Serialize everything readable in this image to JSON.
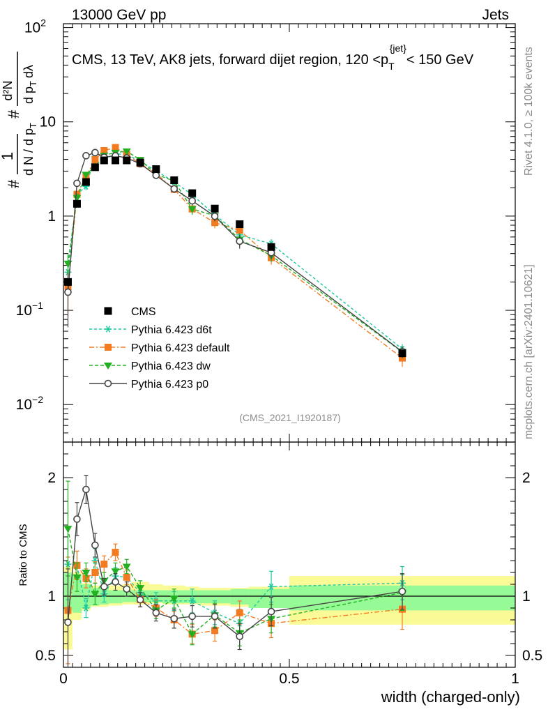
{
  "header": {
    "energy_label": "13000 GeV pp",
    "category_label": "Jets"
  },
  "side_text": {
    "rivet": "Rivet 4.1.0, ≥ 100k events",
    "site": "mcplots.cern.ch [arXiv:2401.10621]"
  },
  "chart_data": {
    "type": "line",
    "title": "CMS, 13 TeV, AK8 jets, forward dijet region, 120 <p_T^{jet}< 150 GeV",
    "title_parts": {
      "main": "CMS, 13 TeV, AK8 jets, forward dijet region, 120 <p",
      "sub": "T",
      "sup": "{jet}",
      "tail": "< 150 GeV"
    },
    "analysis_id": "(CMS_2021_I1920187)",
    "xlabel": "width (charged-only)",
    "ylabel_top": "1/(dN/dp_T) d^2N/(dp_T dλ)",
    "ylabel_top_parts": {
      "hash": "#",
      "one": "1",
      "denom": "d N / d p",
      "denom_sub": "T",
      "num_big": "d²N",
      "num_den": "d p",
      "num_den_sub": "T",
      "num_den_tail": "dλ"
    },
    "ylabel_ratio": "Ratio to CMS",
    "xlim": [
      0,
      1
    ],
    "ylim_top": [
      0.004,
      110
    ],
    "ylim_ratio": [
      0.4,
      2.3
    ],
    "x_ticks": [
      {
        "value": 0,
        "label": "0"
      },
      {
        "value": 0.5,
        "label": "0.5"
      },
      {
        "value": 1,
        "label": "1"
      }
    ],
    "y_ticks_top": [
      {
        "value": 100,
        "base": "10",
        "exp": "2"
      },
      {
        "value": 10,
        "base": "10",
        "exp": ""
      },
      {
        "value": 1,
        "base": "1",
        "exp": ""
      },
      {
        "value": 0.1,
        "base": "10",
        "exp": "−1"
      },
      {
        "value": 0.01,
        "base": "10",
        "exp": "−2"
      }
    ],
    "y_ticks_ratio": [
      {
        "value": 2,
        "label": "2"
      },
      {
        "value": 1,
        "label": "1"
      },
      {
        "value": 0.5,
        "label": "0.5"
      }
    ],
    "x": [
      0.01,
      0.03,
      0.05,
      0.07,
      0.09,
      0.115,
      0.14,
      0.17,
      0.205,
      0.245,
      0.285,
      0.335,
      0.39,
      0.46,
      0.75
    ],
    "band_edges": [
      0.0,
      0.02,
      0.04,
      0.06,
      0.08,
      0.1,
      0.13,
      0.15,
      0.19,
      0.22,
      0.27,
      0.3,
      0.37,
      0.41,
      0.5,
      1.0
    ],
    "band_green": [
      [
        0.88,
        1.2
      ],
      [
        0.86,
        1.18
      ],
      [
        0.9,
        1.1
      ],
      [
        0.92,
        1.07
      ],
      [
        0.93,
        1.07
      ],
      [
        0.94,
        1.05
      ],
      [
        0.95,
        1.05
      ],
      [
        0.95,
        1.05
      ],
      [
        0.95,
        1.05
      ],
      [
        0.94,
        1.05
      ],
      [
        0.94,
        1.05
      ],
      [
        0.94,
        1.05
      ],
      [
        0.93,
        1.06
      ],
      [
        0.9,
        1.06
      ],
      [
        0.88,
        1.09
      ]
    ],
    "band_yellow": [
      [
        0.55,
        1.25
      ],
      [
        0.8,
        1.2
      ],
      [
        0.88,
        1.11
      ],
      [
        0.91,
        1.09
      ],
      [
        0.91,
        1.08
      ],
      [
        0.92,
        1.09
      ],
      [
        0.93,
        1.1
      ],
      [
        0.93,
        1.12
      ],
      [
        0.94,
        1.1
      ],
      [
        0.93,
        1.09
      ],
      [
        0.93,
        1.08
      ],
      [
        0.92,
        1.07
      ],
      [
        0.91,
        1.07
      ],
      [
        0.9,
        1.08
      ],
      [
        0.76,
        1.17
      ]
    ],
    "data_series": {
      "name": "CMS",
      "values": [
        0.2,
        1.35,
        2.3,
        3.3,
        3.9,
        3.9,
        3.9,
        3.7,
        3.15,
        2.4,
        1.75,
        1.2,
        0.82,
        0.47,
        0.035
      ]
    },
    "series": [
      {
        "name": "Pythia 6.423 d6t",
        "color": "#1fc8a0",
        "marker": "star",
        "dash": "4,3",
        "ratio": [
          1.27,
          1.26,
          0.9,
          1.3,
          1.02,
          1.17,
          1.16,
          1.03,
          0.96,
          0.96,
          0.96,
          0.86,
          0.77,
          1.08,
          1.11
        ],
        "ratio_err": [
          0.3,
          0.12,
          0.08,
          0.1,
          0.07,
          0.07,
          0.06,
          0.06,
          0.07,
          0.08,
          0.1,
          0.1,
          0.12,
          0.13,
          0.14
        ]
      },
      {
        "name": "Pythia 6.423 default",
        "color": "#f47a20",
        "marker": "square",
        "dash": "7,3,2,3",
        "ratio": [
          0.88,
          1.26,
          1.15,
          1.2,
          1.27,
          1.37,
          1.16,
          0.97,
          0.9,
          0.8,
          0.68,
          0.71,
          0.86,
          0.77,
          0.89
        ],
        "ratio_err": [
          0.45,
          0.12,
          0.08,
          0.09,
          0.07,
          0.07,
          0.06,
          0.06,
          0.07,
          0.07,
          0.08,
          0.09,
          0.1,
          0.12,
          0.17
        ]
      },
      {
        "name": "Pythia 6.423 dw",
        "color": "#22b022",
        "marker": "triangle-down",
        "dash": "5,3",
        "ratio": [
          1.57,
          1.16,
          1.2,
          1.02,
          1.13,
          1.21,
          1.25,
          1.07,
          0.88,
          0.98,
          0.68,
          0.84,
          0.69,
          0.81,
          1.03
        ],
        "ratio_err": [
          0.4,
          0.12,
          0.08,
          0.09,
          0.07,
          0.07,
          0.06,
          0.06,
          0.07,
          0.08,
          0.09,
          0.1,
          0.11,
          0.12,
          0.15
        ]
      },
      {
        "name": "Pythia 6.423 p0",
        "color": "#444444",
        "marker": "circle-open",
        "dash": "",
        "ratio": [
          0.78,
          1.65,
          1.9,
          1.43,
          1.08,
          1.12,
          1.06,
          0.97,
          0.86,
          0.81,
          0.83,
          0.83,
          0.66,
          0.87,
          1.04
        ],
        "ratio_err": [
          0.45,
          0.14,
          0.12,
          0.1,
          0.07,
          0.07,
          0.06,
          0.06,
          0.07,
          0.08,
          0.09,
          0.1,
          0.11,
          0.12,
          0.15
        ]
      }
    ]
  }
}
